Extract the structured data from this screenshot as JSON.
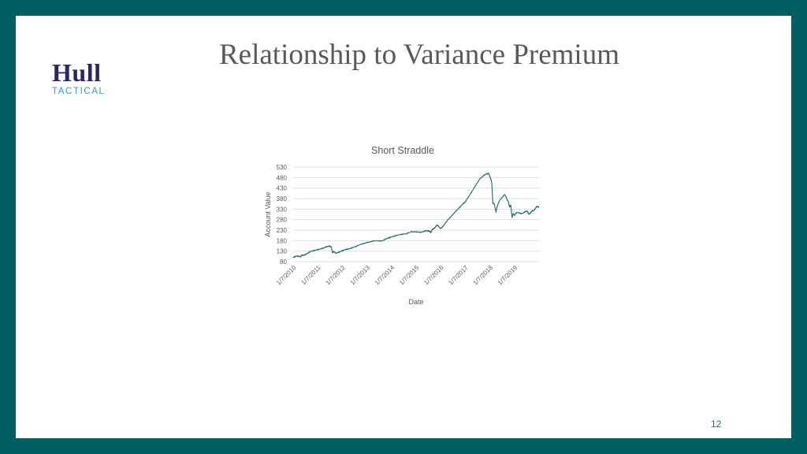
{
  "slide": {
    "title": "Relationship to Variance Premium",
    "page_number": "12",
    "logo": {
      "main": "Hull",
      "sub": "TACTICAL"
    }
  },
  "colors": {
    "frame": "#005f63",
    "line": "#1f6b6b",
    "grid": "#d9d9d9",
    "axis_text": "#595959",
    "logo_main": "#2a2566",
    "logo_sub": "#2aa3a3"
  },
  "chart_data": {
    "type": "line",
    "title": "Short Straddle",
    "xlabel": "Date",
    "ylabel": "Account Value",
    "ylim": [
      80,
      530
    ],
    "yticks": [
      80,
      130,
      180,
      230,
      280,
      330,
      380,
      430,
      480,
      530
    ],
    "xticks": [
      "1/7/2010",
      "1/7/2011",
      "1/7/2012",
      "1/7/2013",
      "1/7/2014",
      "1/7/2015",
      "1/7/2016",
      "1/7/2017",
      "1/7/2018",
      "1/7/2019"
    ],
    "xlim": [
      2010.0,
      2020.0
    ],
    "grid": true,
    "series": [
      {
        "x": [
          2010.0,
          2010.15,
          2010.3,
          2010.35,
          2010.45,
          2010.55,
          2010.7,
          2010.9,
          2011.1,
          2011.3,
          2011.45,
          2011.55,
          2011.6,
          2011.65,
          2011.75,
          2011.9,
          2012.1,
          2012.3,
          2012.5,
          2012.8,
          2013.0,
          2013.3,
          2013.6,
          2013.8,
          2014.0,
          2014.3,
          2014.6,
          2014.8,
          2015.0,
          2015.2,
          2015.4,
          2015.55,
          2015.6,
          2015.65,
          2015.75,
          2015.85,
          2016.0,
          2016.1,
          2016.3,
          2016.5,
          2016.7,
          2016.9,
          2017.0,
          2017.2,
          2017.4,
          2017.6,
          2017.8,
          2017.95,
          2018.05,
          2018.08,
          2018.12,
          2018.18,
          2018.25,
          2018.3,
          2018.4,
          2018.6,
          2018.75,
          2018.8,
          2018.85,
          2018.9,
          2018.95,
          2019.0,
          2019.1,
          2019.3,
          2019.5,
          2019.6,
          2019.7,
          2019.8,
          2019.9,
          2020.0
        ],
        "y": [
          100,
          108,
          102,
          112,
          110,
          118,
          128,
          135,
          140,
          148,
          155,
          150,
          123,
          128,
          120,
          127,
          137,
          142,
          150,
          165,
          170,
          180,
          178,
          190,
          198,
          208,
          213,
          222,
          223,
          219,
          228,
          225,
          218,
          232,
          240,
          255,
          237,
          250,
          280,
          305,
          330,
          355,
          365,
          400,
          440,
          475,
          495,
          500,
          470,
          450,
          360,
          355,
          315,
          345,
          372,
          400,
          365,
          340,
          350,
          290,
          310,
          300,
          315,
          308,
          322,
          305,
          320,
          325,
          342,
          340
        ]
      }
    ]
  }
}
